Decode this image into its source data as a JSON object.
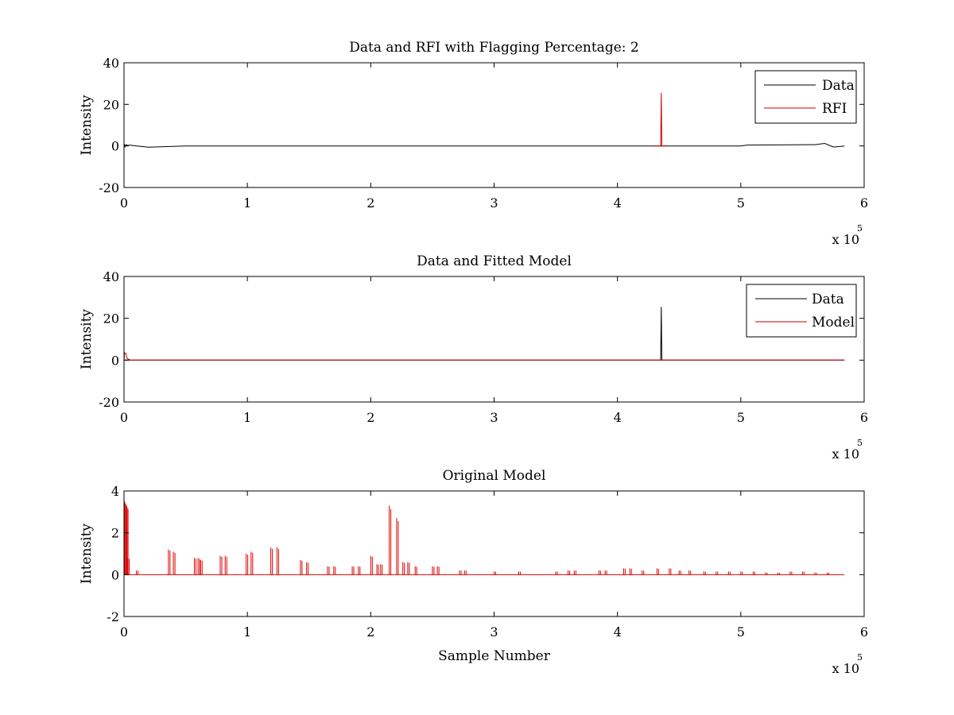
{
  "chart_data": [
    {
      "type": "line",
      "title": "Data and RFI with Flagging Percentage: 2",
      "xlabel": "",
      "ylabel": "Intensity",
      "xlim": [
        0,
        600000
      ],
      "ylim": [
        -20,
        40
      ],
      "xticks": [
        0,
        1,
        2,
        3,
        4,
        5,
        6
      ],
      "yticks": [
        -20,
        0,
        20,
        40
      ],
      "x_multiplier_base": "x 10",
      "x_multiplier_exp": "5",
      "legend_position": "top-right",
      "series": [
        {
          "name": "Data",
          "color": "#000000",
          "x": [
            0,
            300,
            800,
            1500,
            3000,
            5000,
            8000,
            20000,
            50000,
            100000,
            200000,
            300000,
            400000,
            500000,
            505000,
            530000,
            560000,
            568000,
            575000,
            580000,
            584000
          ],
          "y": [
            0,
            0.8,
            -0.4,
            0.6,
            0.2,
            0.4,
            0.1,
            -0.6,
            0,
            0,
            0,
            0,
            0,
            0,
            0.4,
            0.5,
            0.6,
            1.2,
            -0.5,
            -0.3,
            0
          ]
        },
        {
          "name": "RFI",
          "color": "#cc0000",
          "x": [
            430000,
            435000,
            435500,
            436000,
            437000,
            440000
          ],
          "y": [
            0,
            0,
            25.5,
            0,
            0,
            0
          ]
        }
      ]
    },
    {
      "type": "line",
      "title": "Data and Fitted Model",
      "xlabel": "",
      "ylabel": "Intensity",
      "xlim": [
        0,
        600000
      ],
      "ylim": [
        -20,
        40
      ],
      "xticks": [
        0,
        1,
        2,
        3,
        4,
        5,
        6
      ],
      "yticks": [
        -20,
        0,
        20,
        40
      ],
      "x_multiplier_base": "x 10",
      "x_multiplier_exp": "5",
      "legend_position": "top-right",
      "series": [
        {
          "name": "Data",
          "color": "#000000",
          "x": [
            0,
            430000,
            435000,
            435500,
            436000,
            440000,
            584000
          ],
          "y": [
            0,
            0,
            0,
            25.5,
            0,
            0,
            0
          ]
        },
        {
          "name": "Model",
          "color": "#cc0000",
          "x": [
            0,
            500,
            1000,
            1500,
            2500,
            4000,
            6000,
            584000
          ],
          "y": [
            0,
            3.5,
            3.3,
            3.2,
            0.8,
            0.3,
            0,
            0
          ]
        }
      ]
    },
    {
      "type": "line",
      "title": "Original Model",
      "xlabel": "Sample Number",
      "ylabel": "Intensity",
      "xlim": [
        0,
        600000
      ],
      "ylim": [
        -2,
        4
      ],
      "xticks": [
        0,
        1,
        2,
        3,
        4,
        5,
        6
      ],
      "yticks": [
        -2,
        0,
        2,
        4
      ],
      "x_multiplier_base": "x 10",
      "x_multiplier_exp": "5",
      "baseline_end": 584000,
      "series": [
        {
          "name": "Model",
          "color": "#dd0000",
          "peaks": [
            [
              500,
              3.5
            ],
            [
              1200,
              3.4
            ],
            [
              2000,
              3.3
            ],
            [
              3000,
              0.8
            ],
            [
              10000,
              0.2
            ],
            [
              36000,
              1.2
            ],
            [
              40000,
              1.1
            ],
            [
              57000,
              0.8
            ],
            [
              60000,
              0.8
            ],
            [
              62000,
              0.7
            ],
            [
              78000,
              0.9
            ],
            [
              82000,
              0.9
            ],
            [
              99000,
              1.0
            ],
            [
              103000,
              1.1
            ],
            [
              119000,
              1.3
            ],
            [
              124000,
              1.3
            ],
            [
              143000,
              0.7
            ],
            [
              148000,
              0.6
            ],
            [
              165000,
              0.4
            ],
            [
              170000,
              0.4
            ],
            [
              185000,
              0.4
            ],
            [
              190000,
              0.4
            ],
            [
              200000,
              0.9
            ],
            [
              205000,
              0.5
            ],
            [
              208000,
              0.5
            ],
            [
              215000,
              3.3
            ],
            [
              221000,
              2.7
            ],
            [
              226000,
              0.6
            ],
            [
              230000,
              0.6
            ],
            [
              236000,
              0.4
            ],
            [
              250000,
              0.4
            ],
            [
              254000,
              0.4
            ],
            [
              272000,
              0.2
            ],
            [
              276000,
              0.2
            ],
            [
              300000,
              0.15
            ],
            [
              320000,
              0.15
            ],
            [
              350000,
              0.15
            ],
            [
              360000,
              0.2
            ],
            [
              365000,
              0.2
            ],
            [
              385000,
              0.2
            ],
            [
              390000,
              0.2
            ],
            [
              405000,
              0.3
            ],
            [
              410000,
              0.3
            ],
            [
              420000,
              0.2
            ],
            [
              432000,
              0.3
            ],
            [
              442000,
              0.3
            ],
            [
              450000,
              0.2
            ],
            [
              458000,
              0.2
            ],
            [
              470000,
              0.15
            ],
            [
              480000,
              0.15
            ],
            [
              490000,
              0.15
            ],
            [
              500000,
              0.15
            ],
            [
              510000,
              0.15
            ],
            [
              520000,
              0.1
            ],
            [
              530000,
              0.1
            ],
            [
              540000,
              0.15
            ],
            [
              550000,
              0.15
            ],
            [
              560000,
              0.1
            ],
            [
              570000,
              0.1
            ]
          ]
        }
      ]
    }
  ]
}
